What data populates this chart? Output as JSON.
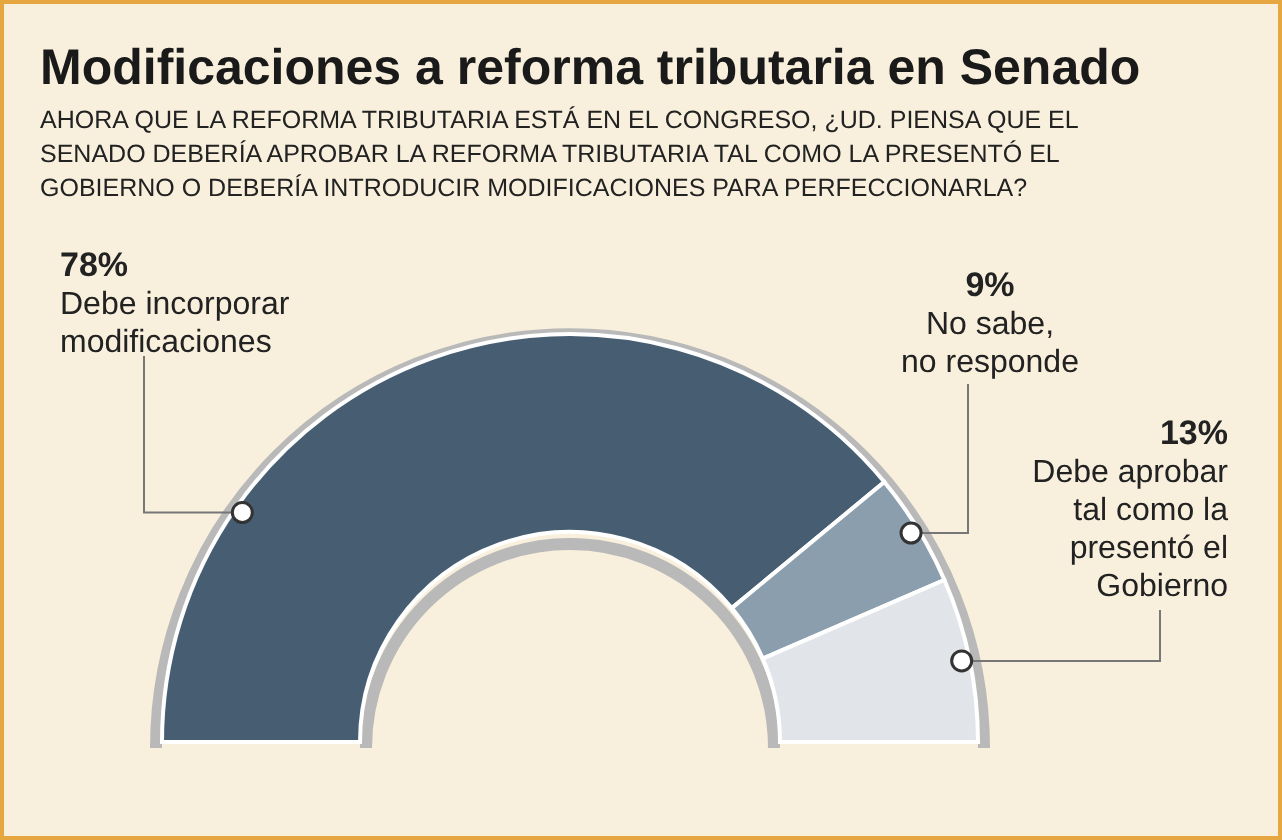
{
  "chart_data": {
    "type": "donut",
    "title": "Modificaciones a reforma tributaria en Senado",
    "subtitle": "AHORA QUE LA REFORMA TRIBUTARIA ESTÁ EN EL CONGRESO, ¿UD. PIENSA QUE EL SENADO DEBERÍA APROBAR LA REFORMA TRIBUTARIA TAL COMO LA PRESENTÓ EL GOBIERNO O DEBERÍA INTRODUCIR MODIFICACIONES PARA PERFECCIONARLA?",
    "categories": [
      "Debe incorporar modificaciones",
      "No sabe, no responde",
      "Debe aprobar tal como la presentó el Gobierno"
    ],
    "values": [
      78,
      9,
      13
    ],
    "colors": [
      "#475e72",
      "#8a9eae",
      "#e1e5ea"
    ],
    "value_labels": [
      "78%",
      "9%",
      "13%"
    ]
  }
}
